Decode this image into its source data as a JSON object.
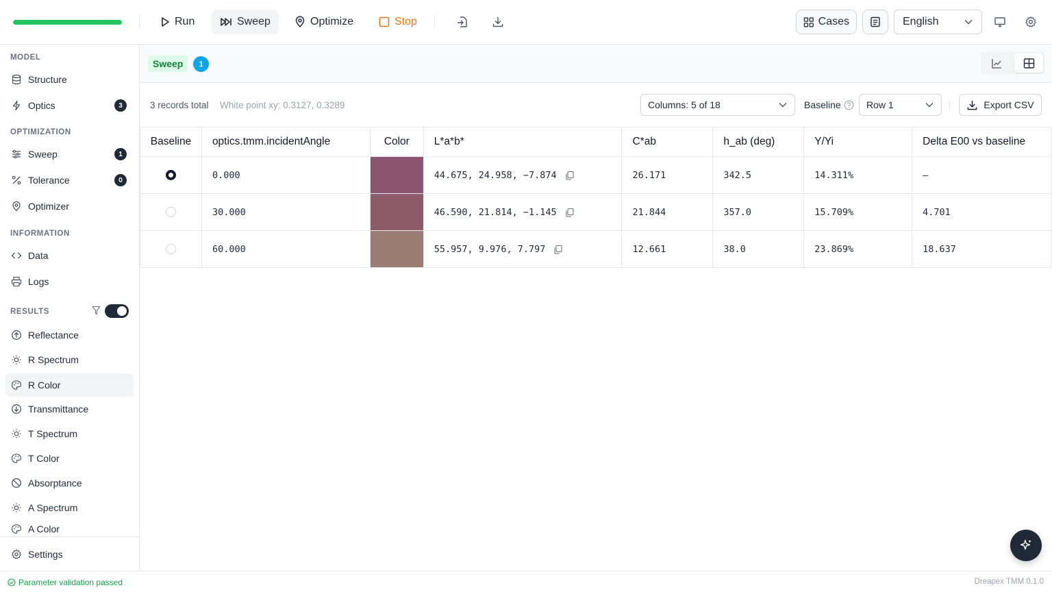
{
  "toolbar": {
    "progress": 1.0,
    "run_label": "Run",
    "sweep_label": "Sweep",
    "optimize_label": "Optimize",
    "stop_label": "Stop",
    "cases_label": "Cases",
    "language": "English"
  },
  "sidebar": {
    "sections": {
      "model": "MODEL",
      "optimization": "OPTIMIZATION",
      "information": "INFORMATION",
      "results": "RESULTS"
    },
    "items": {
      "structure": "Structure",
      "optics": "Optics",
      "optics_badge": "3",
      "sweep": "Sweep",
      "sweep_badge": "1",
      "tolerance": "Tolerance",
      "tolerance_badge": "0",
      "optimizer": "Optimizer",
      "data": "Data",
      "logs": "Logs",
      "reflectance": "Reflectance",
      "r_spectrum": "R Spectrum",
      "r_color": "R Color",
      "transmittance": "Transmittance",
      "t_spectrum": "T Spectrum",
      "t_color": "T Color",
      "absorptance": "Absorptance",
      "a_spectrum": "A Spectrum",
      "a_color": "A Color",
      "settings": "Settings"
    }
  },
  "panel": {
    "tag": "Sweep",
    "count": "1"
  },
  "table_toolbar": {
    "records": "3 records total",
    "white_point": "White point xy: 0.3127, 0.3289",
    "columns_select": "Columns: 5 of 18",
    "baseline_label": "Baseline",
    "baseline_value": "Row 1",
    "export_label": "Export CSV"
  },
  "table": {
    "headers": [
      "Baseline",
      "optics.tmm.incidentAngle",
      "Color",
      "L*a*b*",
      "C*ab",
      "h_ab (deg)",
      "Y/Yi",
      "Delta E00 vs baseline"
    ],
    "rows": [
      {
        "angle": "0.000",
        "color": "#8B5570",
        "lab": "44.675, 24.958, −7.874",
        "cab": "26.171",
        "hab": "342.5",
        "yyi": "14.311%",
        "de": "–"
      },
      {
        "angle": "30.000",
        "color": "#8E5B6A",
        "lab": "46.590, 21.814, −1.145",
        "cab": "21.844",
        "hab": "357.0",
        "yyi": "15.709%",
        "de": "4.701"
      },
      {
        "angle": "60.000",
        "color": "#9A7C74",
        "lab": "55.957, 9.976, 7.797",
        "cab": "12.661",
        "hab": "38.0",
        "yyi": "23.869%",
        "de": "18.637"
      }
    ]
  },
  "status": {
    "message": "Parameter validation passed",
    "version": "Dreapex TMM 0.1.0"
  },
  "colors": {
    "accent_green": "#22c55e",
    "stop_orange": "#f97316",
    "badge_dark": "#1f2937",
    "count_blue": "#0ea5e9"
  }
}
